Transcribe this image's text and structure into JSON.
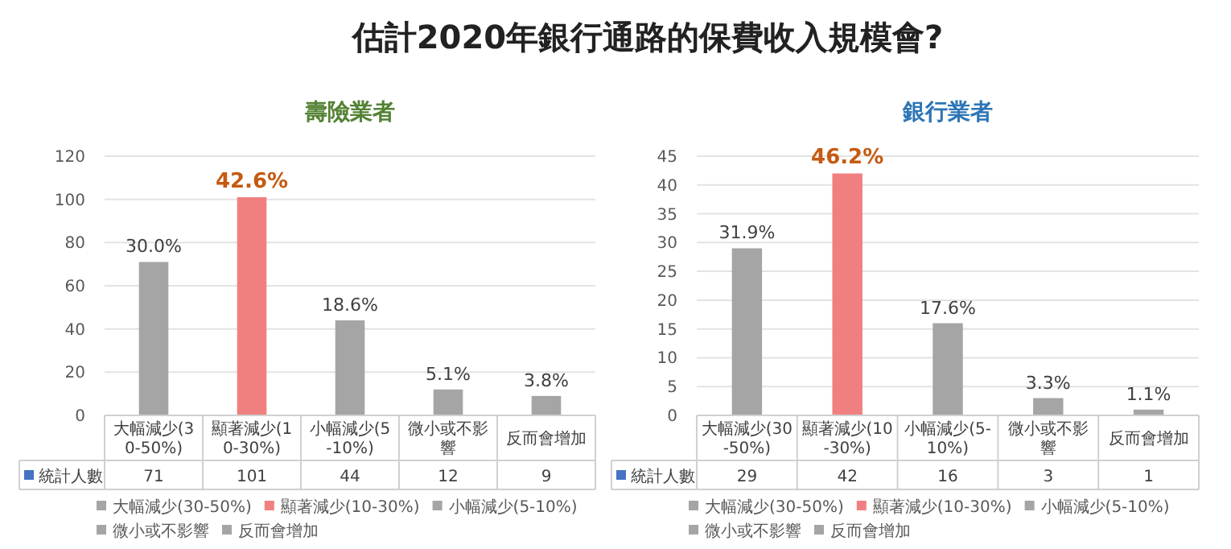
{
  "chart_data": [
    {
      "type": "bar",
      "title": "估計2020年銀行通路的保費收入規模會?",
      "subtitle": "壽險業者",
      "categories": [
        "大幅減少(30-50%)",
        "顯著減少(10-30%)",
        "小幅減少(5-10%)",
        "微小或不影響",
        "反而會增加"
      ],
      "series": [
        {
          "name": "統計人數",
          "color": "#4472c4",
          "colors": [
            "#a5a5a5",
            "#f08080",
            "#a5a5a5",
            "#a5a5a5",
            "#a5a5a5"
          ],
          "values": [
            71,
            101,
            44,
            12,
            9
          ]
        }
      ],
      "annotations": [
        {
          "text": "30.0%",
          "x": "大幅減少(30-50%)",
          "y": 71
        },
        {
          "text": "42.6%",
          "x": "顯著減少(10-30%)",
          "y": 101
        },
        {
          "text": "18.6%",
          "x": "小幅減少(5-10%)",
          "y": 44
        },
        {
          "text": "5.1%",
          "x": "微小或不影響",
          "y": 12
        },
        {
          "text": "3.8%",
          "x": "反而會增加",
          "y": 9
        }
      ],
      "ylim": [
        0,
        120
      ],
      "yticks": [
        0,
        20,
        40,
        60,
        80,
        100,
        120
      ],
      "grid": "y",
      "legend": "bottom",
      "data_labels": true
    },
    {
      "type": "bar",
      "title": "銀行業者",
      "categories": [
        "大幅減少(30-50%)",
        "顯著減少(10-30%)",
        "小幅減少(5-10%)",
        "微小或不影響",
        "反而會增加"
      ],
      "series": [
        {
          "name": "統計人數",
          "color": "#4472c4",
          "colors": [
            "#a5a5a5",
            "#f08080",
            "#a5a5a5",
            "#a5a5a5",
            "#a5a5a5"
          ],
          "values": [
            29,
            42,
            16,
            3,
            1
          ]
        }
      ],
      "annotations": [
        {
          "text": "31.9%",
          "x": "大幅減少(30-50%)",
          "y": 29
        },
        {
          "text": "46.2%",
          "x": "顯著減少(10-30%)",
          "y": 42
        },
        {
          "text": "17.6%",
          "x": "小幅減少(5-10%)",
          "y": 16
        },
        {
          "text": "3.3%",
          "x": "微小或不影響",
          "y": 3
        },
        {
          "text": "1.1%",
          "x": "反而會增加",
          "y": 1
        }
      ],
      "ylim": [
        0,
        45
      ],
      "yticks": [
        0,
        5,
        10,
        15,
        20,
        25,
        30,
        35,
        40,
        45
      ],
      "grid": "y",
      "legend": "bottom",
      "data_labels": true
    }
  ]
}
